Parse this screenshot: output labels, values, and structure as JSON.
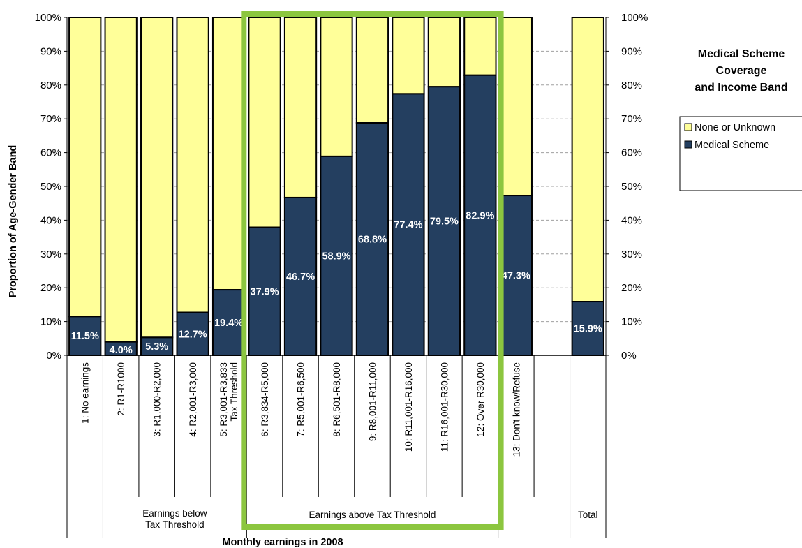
{
  "chart_data": {
    "type": "bar",
    "stacked": true,
    "percent_stacked": true,
    "title": "Medical Scheme Coverage and Income Band",
    "title_lines": [
      "Medical Scheme",
      "Coverage",
      "and Income Band"
    ],
    "xlabel": "Monthly earnings in 2008",
    "ylabel": "Proportion of Age-Gender Band",
    "ylim": [
      0,
      100
    ],
    "yticks": [
      "0%",
      "10%",
      "20%",
      "30%",
      "40%",
      "50%",
      "60%",
      "70%",
      "80%",
      "90%",
      "100%"
    ],
    "categories": [
      "1: No earnings",
      "2: R1-R1000",
      "3: R1,000-R2,000",
      "4: R2,001-R3,000",
      "5: R3,001-R3,833 Tax Threshold",
      "6: R3,834-R5,000",
      "7: R5,001-R6,500",
      "8: R6,501-R8,000",
      "9: R8,001-R11,000",
      "10: R11,001-R16,000",
      "11: R16,001-R30,000",
      "12: Over R30,000",
      "13: Don't know/Refuse",
      "",
      "Total"
    ],
    "category_lines": [
      [
        "1: No earnings"
      ],
      [
        "2: R1-R1000"
      ],
      [
        "3: R1,000-R2,000"
      ],
      [
        "4: R2,001-R3,000"
      ],
      [
        "5: R3,001-R3,833",
        "Tax Threshold"
      ],
      [
        "6: R3,834-R5,000"
      ],
      [
        "7: R5,001-R6,500"
      ],
      [
        "8: R6,501-R8,000"
      ],
      [
        "9: R8,001-R11,000"
      ],
      [
        "10: R11,001-R16,000"
      ],
      [
        "11: R16,001-R30,000"
      ],
      [
        "12: Over R30,000"
      ],
      [
        "13: Don't know/Refuse"
      ],
      [],
      []
    ],
    "groups": [
      {
        "label_lines": [],
        "from": 0,
        "to": 0
      },
      {
        "label_lines": [
          "Earnings below",
          "Tax Threshold"
        ],
        "from": 1,
        "to": 4
      },
      {
        "label_lines": [
          "Earnings above Tax Threshold"
        ],
        "from": 5,
        "to": 11
      },
      {
        "label_lines": [],
        "from": 12,
        "to": 13
      },
      {
        "label_lines": [
          "Total"
        ],
        "from": 14,
        "to": 14
      }
    ],
    "highlight": {
      "from": 5,
      "to": 11,
      "color": "#8cc63f"
    },
    "series": [
      {
        "name": "Medical Scheme",
        "color": "#243f60",
        "values": [
          11.5,
          4.0,
          5.3,
          12.7,
          19.4,
          37.9,
          46.7,
          58.9,
          68.8,
          77.4,
          79.5,
          82.9,
          47.3,
          null,
          15.9
        ],
        "labels": [
          "11.5%",
          "4.0%",
          "5.3%",
          "12.7%",
          "19.4%",
          "37.9%",
          "46.7%",
          "58.9%",
          "68.8%",
          "77.4%",
          "79.5%",
          "82.9%",
          "47.3%",
          "",
          "15.9%"
        ]
      },
      {
        "name": "None or Unknown",
        "color": "#ffff99",
        "values": [
          88.5,
          96.0,
          94.7,
          87.3,
          80.6,
          62.1,
          53.3,
          41.1,
          31.2,
          22.6,
          20.5,
          17.1,
          52.7,
          null,
          84.1
        ]
      }
    ],
    "legend": {
      "position": "right",
      "items": [
        {
          "label": "None or Unknown",
          "color": "#ffff99"
        },
        {
          "label": "Medical Scheme",
          "color": "#243f60"
        }
      ]
    },
    "grid": {
      "horizontal": true,
      "style": "dashed"
    }
  }
}
